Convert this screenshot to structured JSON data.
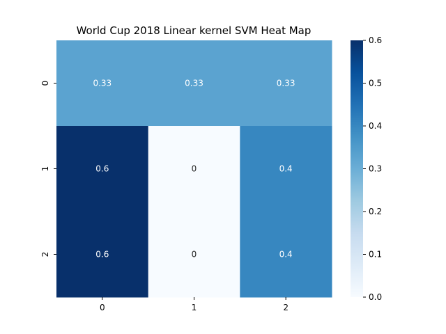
{
  "chart_data": {
    "type": "heatmap",
    "title": "World Cup 2018 Linear kernel SVM Heat Map",
    "x_categories": [
      "0",
      "1",
      "2"
    ],
    "y_categories": [
      "0",
      "1",
      "2"
    ],
    "values": [
      [
        0.33,
        0.33,
        0.33
      ],
      [
        0.6,
        0,
        0.4
      ],
      [
        0.6,
        0,
        0.4
      ]
    ],
    "annotations": [
      [
        "0.33",
        "0.33",
        "0.33"
      ],
      [
        "0.6",
        "0",
        "0.4"
      ],
      [
        "0.6",
        "0",
        "0.4"
      ]
    ],
    "colormap": "Blues",
    "colorbar": {
      "range": [
        0.0,
        0.6
      ],
      "ticks": [
        0.0,
        0.1,
        0.2,
        0.3,
        0.4,
        0.5,
        0.6
      ],
      "tick_labels": [
        "0.0",
        "0.1",
        "0.2",
        "0.3",
        "0.4",
        "0.5",
        "0.6"
      ]
    },
    "annot_light_color": "#ffffff",
    "annot_dark_color": "#262626"
  }
}
